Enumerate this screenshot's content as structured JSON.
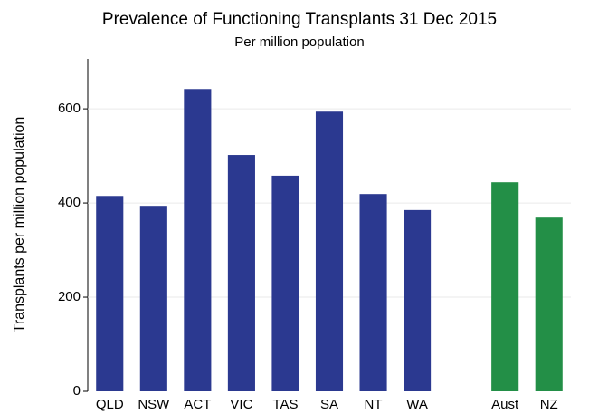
{
  "chart_data": {
    "type": "bar",
    "title": "Prevalence of Functioning Transplants 31 Dec 2015",
    "subtitle": "Per million population",
    "y_label": "Transplants per million population",
    "categories": [
      "QLD",
      "NSW",
      "ACT",
      "VIC",
      "TAS",
      "SA",
      "NT",
      "WA",
      null,
      "Aust",
      "NZ"
    ],
    "values": [
      415,
      394,
      642,
      502,
      458,
      594,
      419,
      385,
      null,
      444,
      369
    ],
    "colors": [
      "#2b3990",
      "#2b3990",
      "#2b3990",
      "#2b3990",
      "#2b3990",
      "#2b3990",
      "#2b3990",
      "#2b3990",
      null,
      "#238f47",
      "#238f47"
    ],
    "ylim": [
      0,
      706
    ],
    "yticks": [
      0,
      200,
      400,
      600
    ],
    "grid": true
  }
}
